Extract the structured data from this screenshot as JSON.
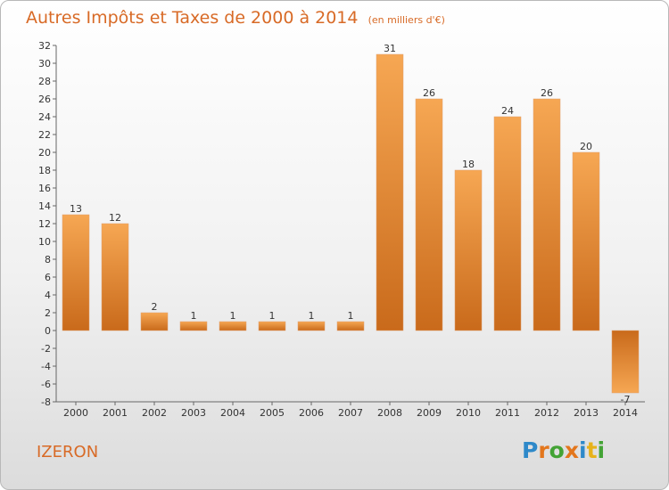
{
  "chart_data": {
    "type": "bar",
    "title": "Autres Impôts et Taxes de 2000 à 2014",
    "subtitle": "(en milliers d'€)",
    "categories": [
      "2000",
      "2001",
      "2002",
      "2003",
      "2004",
      "2005",
      "2006",
      "2007",
      "2008",
      "2009",
      "2010",
      "2011",
      "2012",
      "2013",
      "2014"
    ],
    "values": [
      13,
      12,
      2,
      1,
      1,
      1,
      1,
      1,
      31,
      26,
      18,
      24,
      26,
      20,
      -7
    ],
    "value_labels": [
      "13",
      "12",
      "2",
      "1",
      "1",
      "1",
      "1",
      "1",
      "31",
      "26",
      "18",
      "24",
      "26",
      "20",
      "-7"
    ],
    "ylim": [
      -8,
      32
    ],
    "yticks": [
      "-8",
      "-6",
      "-4",
      "-2",
      "0",
      "2",
      "4",
      "6",
      "8",
      "10",
      "12",
      "14",
      "16",
      "18",
      "20",
      "22",
      "24",
      "26",
      "28",
      "30",
      "32"
    ],
    "grid": false,
    "colors": {
      "bar_light": "#f6a753",
      "bar_dark": "#c96a1b",
      "axis": "#555555"
    }
  },
  "footer": {
    "commune": "IZERON",
    "logo_text": "Proxiti",
    "logo_letter_colors": [
      "#2e89c9",
      "#e3761c",
      "#43a335",
      "#e3761c",
      "#2e89c9",
      "#e7b21a",
      "#43a335"
    ]
  }
}
